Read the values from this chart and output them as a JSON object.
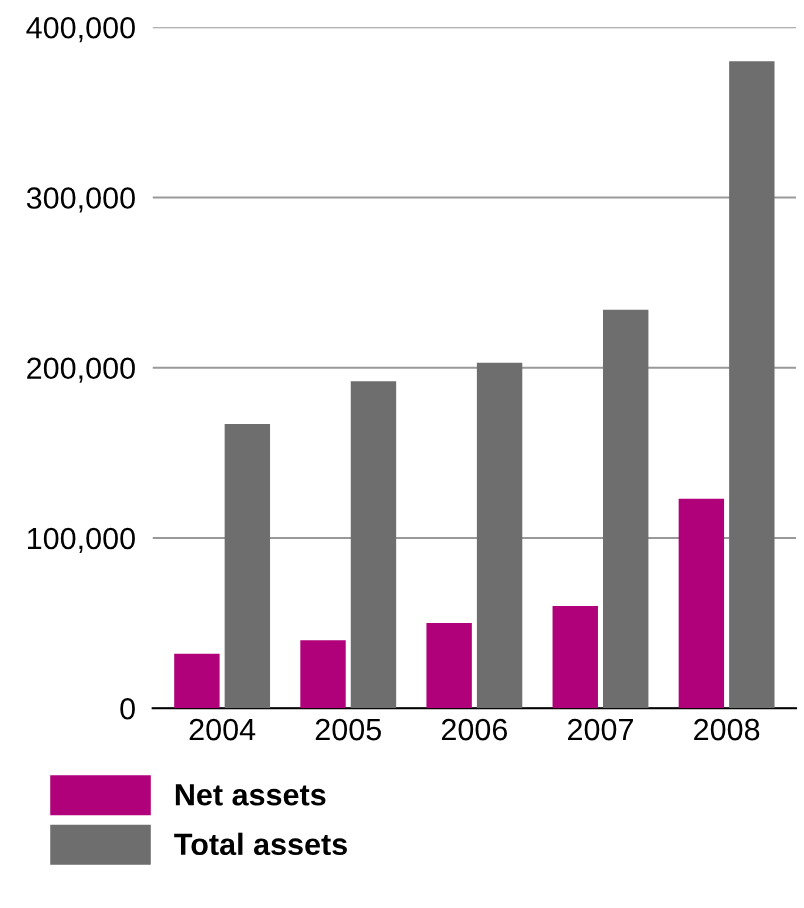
{
  "chart_data": {
    "type": "bar",
    "categories": [
      "2004",
      "2005",
      "2006",
      "2007",
      "2008"
    ],
    "series": [
      {
        "name": "Net assets",
        "color": "#b0007a",
        "values": [
          32000,
          40000,
          50000,
          60000,
          123000
        ]
      },
      {
        "name": "Total assets",
        "color": "#6e6e6e",
        "values": [
          167000,
          192000,
          203000,
          234000,
          380000
        ]
      }
    ],
    "ylim": [
      0,
      400000
    ],
    "yticks": [
      {
        "value": 0,
        "label": "0"
      },
      {
        "value": 100000,
        "label": "100,000"
      },
      {
        "value": 200000,
        "label": "200,000"
      },
      {
        "value": 300000,
        "label": "300,000"
      },
      {
        "value": 400000,
        "label": "400,000"
      }
    ],
    "grid": "y",
    "legend": "bottom"
  }
}
